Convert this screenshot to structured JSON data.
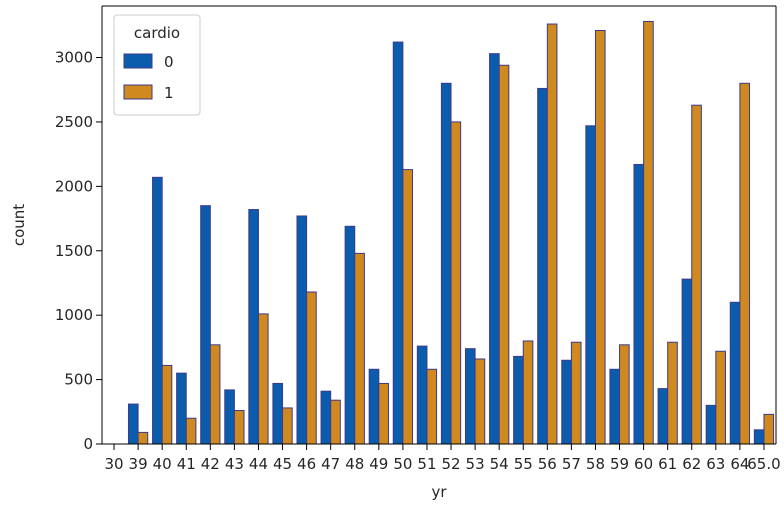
{
  "chart_data": {
    "type": "bar",
    "xlabel": "yr",
    "ylabel": "count",
    "ylim": [
      0,
      3400
    ],
    "yticks": [
      0,
      500,
      1000,
      1500,
      2000,
      2500,
      3000
    ],
    "legend": {
      "title": "cardio",
      "placement": "top-left"
    },
    "categories": [
      "30",
      "39",
      "40",
      "41",
      "42",
      "43",
      "44",
      "45",
      "46",
      "47",
      "48",
      "49",
      "50",
      "51",
      "52",
      "53",
      "54",
      "55",
      "56",
      "57",
      "58",
      "59",
      "60",
      "61",
      "62",
      "63",
      "64",
      "65"
    ],
    "tick_labels": [
      "30",
      "39",
      "40",
      "41",
      "42",
      "43",
      "44",
      "45",
      "46",
      "47",
      "48",
      "49",
      "50",
      "51",
      "52",
      "53",
      "54",
      "55",
      "56",
      "57",
      "58",
      "59",
      "60",
      "61",
      "62",
      "63",
      "64",
      "65.0"
    ],
    "series": [
      {
        "name": "0",
        "color": "#0b5cad",
        "values": [
          0,
          310,
          2070,
          550,
          1850,
          420,
          1820,
          470,
          1770,
          410,
          1690,
          580,
          3120,
          760,
          2800,
          740,
          3030,
          680,
          2760,
          650,
          2470,
          580,
          2170,
          430,
          1280,
          300,
          1100,
          110
        ]
      },
      {
        "name": "1",
        "color": "#d0891f",
        "values": [
          0,
          90,
          610,
          200,
          770,
          260,
          1010,
          280,
          1180,
          340,
          1480,
          470,
          2130,
          580,
          2500,
          660,
          2940,
          800,
          3260,
          790,
          3210,
          770,
          3280,
          790,
          2630,
          720,
          2800,
          230
        ]
      }
    ]
  }
}
